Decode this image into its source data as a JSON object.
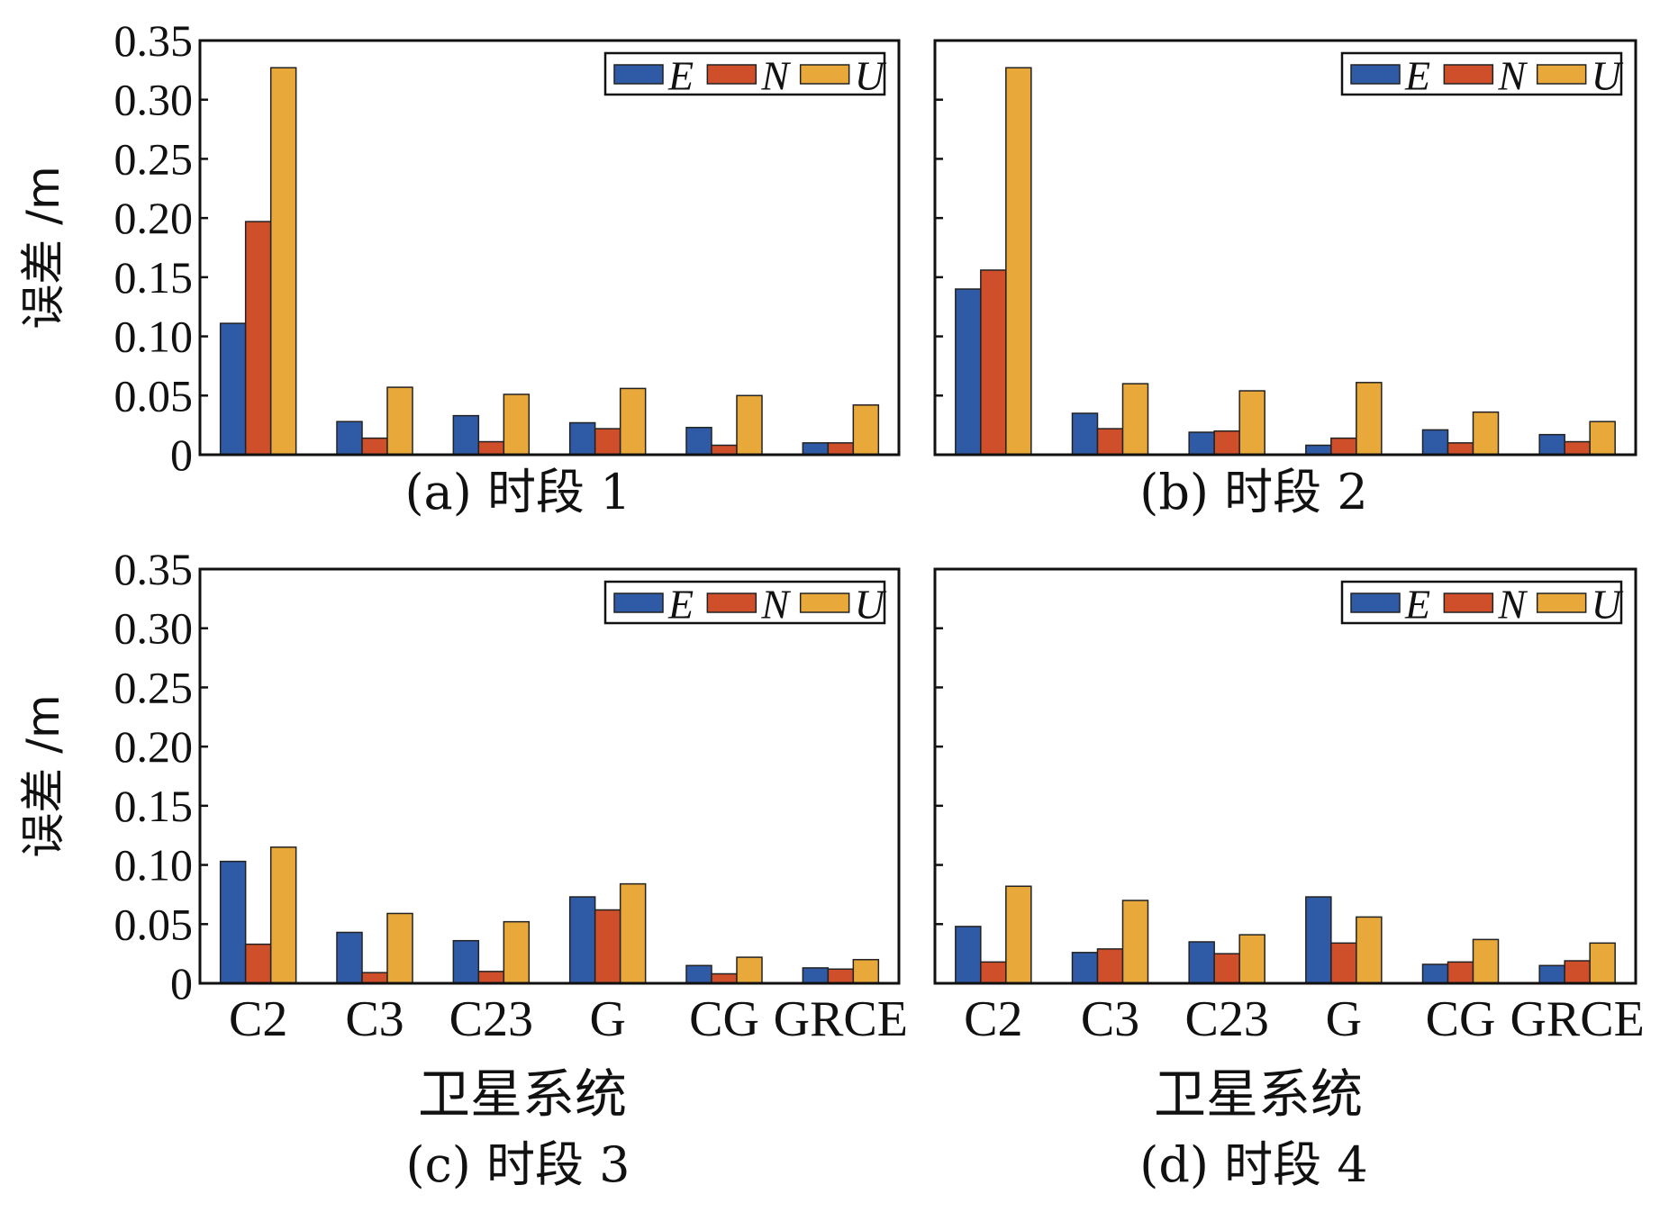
{
  "colors": {
    "E": "#2f5aa5",
    "N": "#cf4f2a",
    "U": "#e8a93a"
  },
  "chart_data": [
    {
      "type": "bar",
      "panel": "a",
      "caption": "(a) 时段 1",
      "categories": [
        "C2",
        "C3",
        "C23",
        "G",
        "CG",
        "GRCE"
      ],
      "series": [
        {
          "name": "E",
          "values": [
            0.111,
            0.028,
            0.033,
            0.027,
            0.023,
            0.01
          ]
        },
        {
          "name": "N",
          "values": [
            0.197,
            0.014,
            0.011,
            0.022,
            0.008,
            0.01
          ]
        },
        {
          "name": "U",
          "values": [
            0.327,
            0.057,
            0.051,
            0.056,
            0.05,
            0.042
          ]
        }
      ],
      "ylabel": "误差 /m",
      "xlabel": "",
      "ylim": [
        0,
        0.35
      ],
      "yticks": [
        "0",
        "0.05",
        "0.10",
        "0.15",
        "0.20",
        "0.25",
        "0.30",
        "0.35"
      ],
      "show_ytick_labels": true,
      "show_xtick_labels": false,
      "legend": "top-right"
    },
    {
      "type": "bar",
      "panel": "b",
      "caption": "(b) 时段 2",
      "categories": [
        "C2",
        "C3",
        "C23",
        "G",
        "CG",
        "GRCE"
      ],
      "series": [
        {
          "name": "E",
          "values": [
            0.14,
            0.035,
            0.019,
            0.008,
            0.021,
            0.017
          ]
        },
        {
          "name": "N",
          "values": [
            0.156,
            0.022,
            0.02,
            0.014,
            0.01,
            0.011
          ]
        },
        {
          "name": "U",
          "values": [
            0.327,
            0.06,
            0.054,
            0.061,
            0.036,
            0.028
          ]
        }
      ],
      "ylabel": "",
      "xlabel": "",
      "ylim": [
        0,
        0.35
      ],
      "yticks": [
        "0",
        "0.05",
        "0.10",
        "0.15",
        "0.20",
        "0.25",
        "0.30",
        "0.35"
      ],
      "show_ytick_labels": false,
      "show_xtick_labels": false,
      "legend": "top-right"
    },
    {
      "type": "bar",
      "panel": "c",
      "caption": "(c) 时段 3",
      "categories": [
        "C2",
        "C3",
        "C23",
        "G",
        "CG",
        "GRCE"
      ],
      "series": [
        {
          "name": "E",
          "values": [
            0.103,
            0.043,
            0.036,
            0.073,
            0.015,
            0.013
          ]
        },
        {
          "name": "N",
          "values": [
            0.033,
            0.009,
            0.01,
            0.062,
            0.008,
            0.012
          ]
        },
        {
          "name": "U",
          "values": [
            0.115,
            0.059,
            0.052,
            0.084,
            0.022,
            0.02
          ]
        }
      ],
      "ylabel": "误差 /m",
      "xlabel": "卫星系统",
      "ylim": [
        0,
        0.35
      ],
      "yticks": [
        "0",
        "0.05",
        "0.10",
        "0.15",
        "0.20",
        "0.25",
        "0.30",
        "0.35"
      ],
      "show_ytick_labels": true,
      "show_xtick_labels": true,
      "legend": "top-right"
    },
    {
      "type": "bar",
      "panel": "d",
      "caption": "(d) 时段 4",
      "categories": [
        "C2",
        "C3",
        "C23",
        "G",
        "CG",
        "GRCE"
      ],
      "series": [
        {
          "name": "E",
          "values": [
            0.048,
            0.026,
            0.035,
            0.073,
            0.016,
            0.015
          ]
        },
        {
          "name": "N",
          "values": [
            0.018,
            0.029,
            0.025,
            0.034,
            0.018,
            0.019
          ]
        },
        {
          "name": "U",
          "values": [
            0.082,
            0.07,
            0.041,
            0.056,
            0.037,
            0.034
          ]
        }
      ],
      "ylabel": "",
      "xlabel": "卫星系统",
      "ylim": [
        0,
        0.35
      ],
      "yticks": [
        "0",
        "0.05",
        "0.10",
        "0.15",
        "0.20",
        "0.25",
        "0.30",
        "0.35"
      ],
      "show_ytick_labels": false,
      "show_xtick_labels": true,
      "legend": "top-right"
    }
  ]
}
